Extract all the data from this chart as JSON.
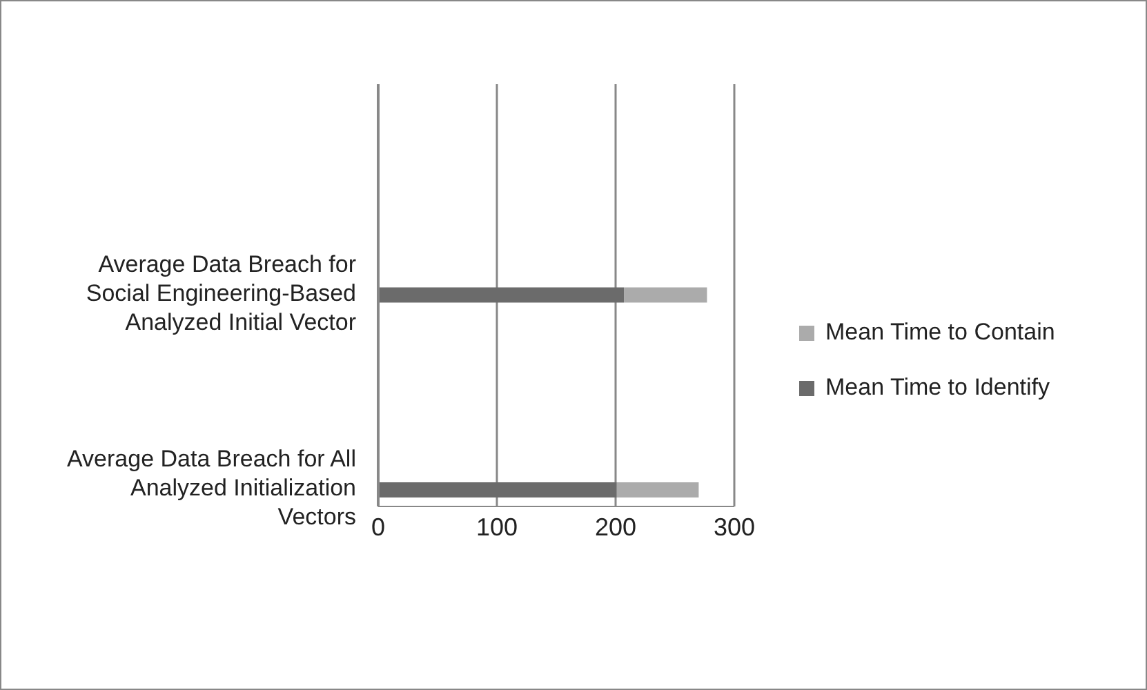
{
  "chart_data": {
    "type": "bar",
    "orientation": "horizontal",
    "stacked": true,
    "categories": [
      null,
      null,
      null,
      null,
      null,
      null,
      "Average Data Breach for Social Engineering-Based Analyzed Initial Vector",
      null,
      null,
      null,
      null,
      null,
      "Average Data Breach for All Analyzed Initialization Vectors"
    ],
    "series": [
      {
        "name": "Mean Time to Identify",
        "color": "#6b6b6b",
        "values": [
          null,
          null,
          null,
          null,
          null,
          null,
          207,
          null,
          null,
          null,
          null,
          null,
          201
        ]
      },
      {
        "name": "Mean Time to Contain",
        "color": "#ababab",
        "values": [
          null,
          null,
          null,
          null,
          null,
          null,
          70,
          null,
          null,
          null,
          null,
          null,
          69
        ]
      }
    ],
    "xlim": [
      0,
      300
    ],
    "xticks": [
      0,
      100,
      200,
      300
    ],
    "grid": "x",
    "legend": "right"
  }
}
